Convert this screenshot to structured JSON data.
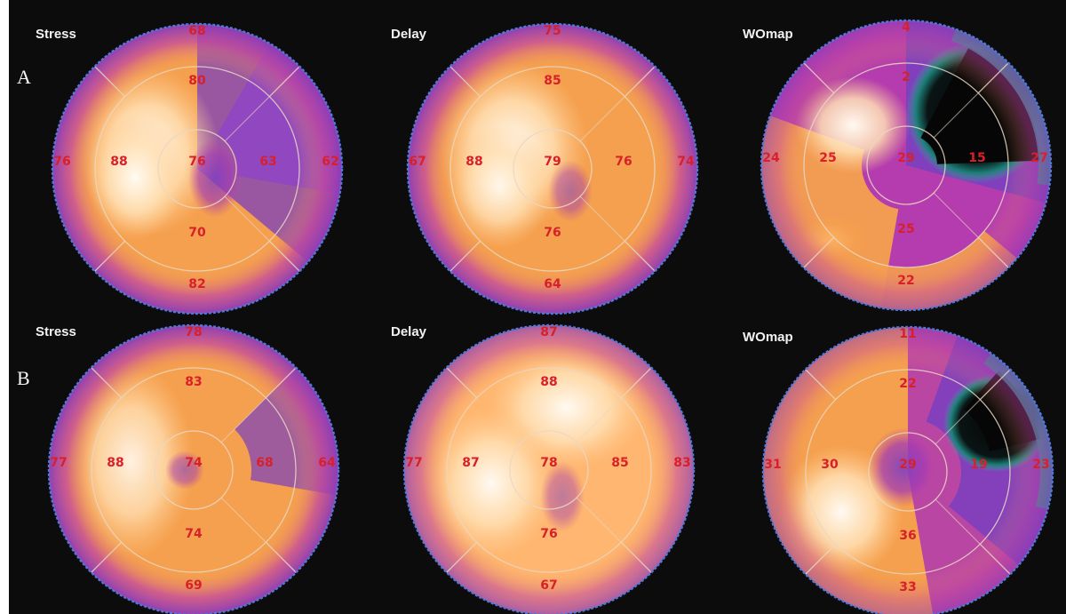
{
  "rows": [
    {
      "label": "A",
      "panels": [
        {
          "title": "Stress",
          "values": {
            "top": "68",
            "ant": "80",
            "sep_out": "76",
            "sep_in": "88",
            "apex": "76",
            "lat_in": "63",
            "lat_out": "62",
            "inf": "70",
            "bottom": "82"
          },
          "style": "stress_a"
        },
        {
          "title": "Delay",
          "values": {
            "top": "75",
            "ant": "85",
            "sep_out": "67",
            "sep_in": "88",
            "apex": "79",
            "lat_in": "76",
            "lat_out": "74",
            "inf": "76",
            "bottom": "64"
          },
          "style": "delay_a"
        },
        {
          "title": "WOmap",
          "values": {
            "top": "4",
            "ant": "2",
            "sep_out": "24",
            "sep_in": "25",
            "apex": "29",
            "lat_in": "15",
            "lat_out": "27",
            "inf": "25",
            "bottom": "22"
          },
          "style": "wo_a"
        }
      ]
    },
    {
      "label": "B",
      "panels": [
        {
          "title": "Stress",
          "values": {
            "top": "78",
            "ant": "83",
            "sep_out": "77",
            "sep_in": "88",
            "apex": "74",
            "lat_in": "68",
            "lat_out": "64",
            "inf": "74",
            "bottom": "69"
          },
          "style": "stress_b"
        },
        {
          "title": "Delay",
          "values": {
            "top": "87",
            "ant": "88",
            "sep_out": "77",
            "sep_in": "87",
            "apex": "78",
            "lat_in": "85",
            "lat_out": "83",
            "inf": "76",
            "bottom": "67"
          },
          "style": "delay_b"
        },
        {
          "title": "WOmap",
          "values": {
            "top": "11",
            "ant": "22",
            "sep_out": "31",
            "sep_in": "30",
            "apex": "29",
            "lat_in": "19",
            "lat_out": "23",
            "inf": "36",
            "bottom": "33"
          },
          "style": "wo_b"
        }
      ]
    }
  ],
  "palette": {
    "background": "#0d0c0d",
    "white_hot": "#fff6ea",
    "light_orange": "#ffc98a",
    "orange": "#f5a04e",
    "magenta": "#b43cae",
    "purple": "#7a3fbf",
    "teal": "#2a9b8f",
    "black": "#060606",
    "ring_line": "#e9d7c4",
    "rim": "#4e79d8",
    "value_text": "#d8202a"
  },
  "icons": [
    "bullseye-polar-map"
  ]
}
